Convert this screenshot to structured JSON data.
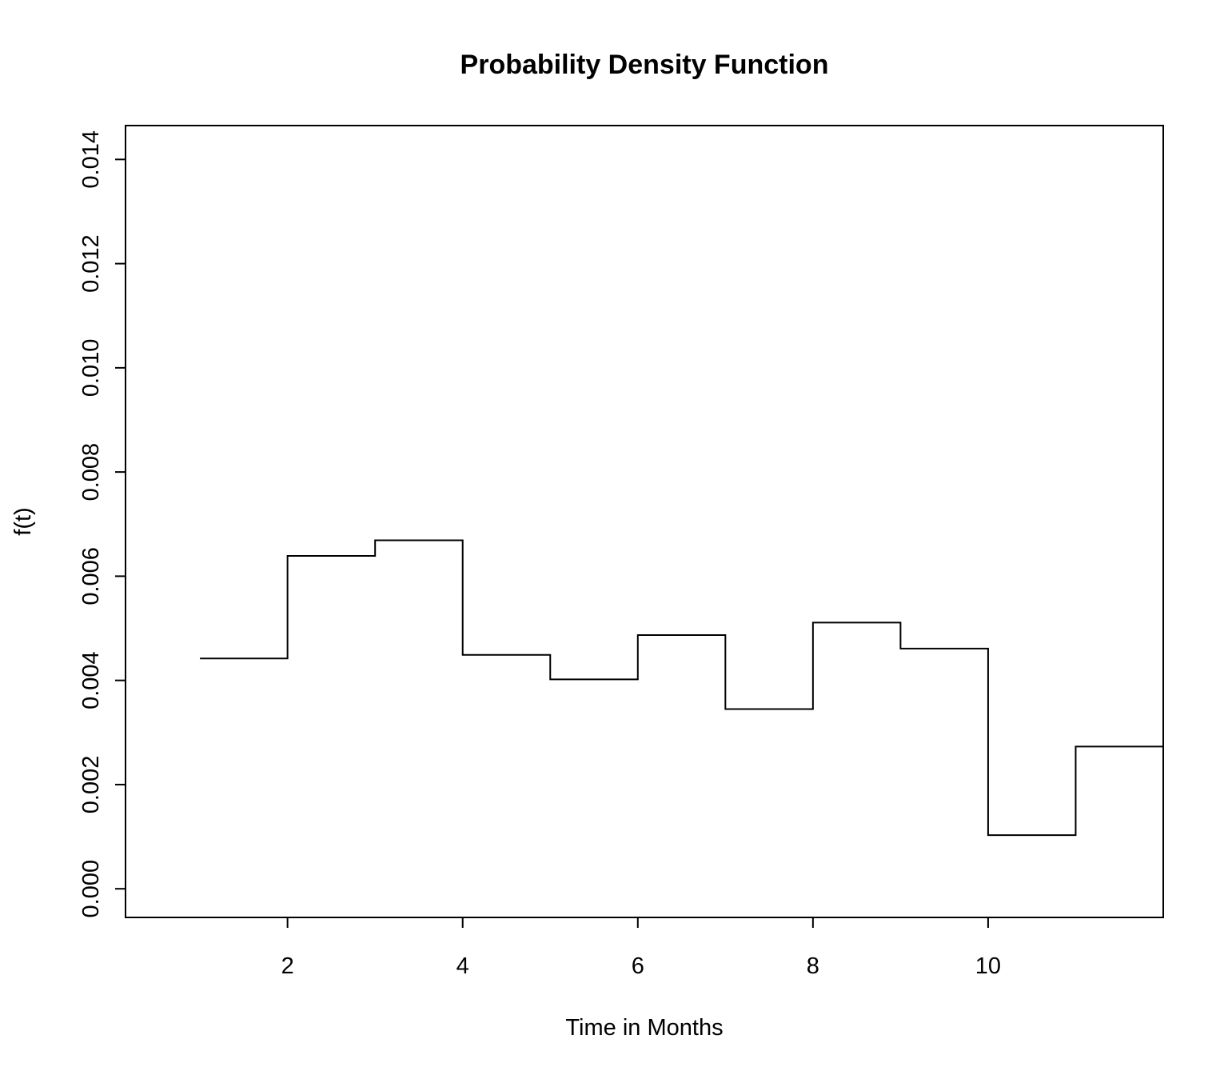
{
  "chart_data": {
    "type": "line",
    "style": "step",
    "title": "Probability Density Function",
    "xlabel": "Time in Months",
    "ylabel": "f(t)",
    "xlim": [
      0.15,
      12.0
    ],
    "ylim": [
      -0.00055,
      0.01465
    ],
    "xticks": [
      2,
      4,
      6,
      8,
      10
    ],
    "xtick_labels": [
      "2",
      "4",
      "6",
      "8",
      "10"
    ],
    "yticks": [
      0.0,
      0.002,
      0.004,
      0.006,
      0.008,
      0.01,
      0.012,
      0.014
    ],
    "ytick_labels": [
      "0.000",
      "0.002",
      "0.004",
      "0.006",
      "0.008",
      "0.010",
      "0.012",
      "0.014"
    ],
    "grid": false,
    "legend": "none",
    "series": [
      {
        "x": [
          1,
          2,
          3,
          4,
          5,
          6,
          7,
          8,
          9,
          10,
          11,
          12
        ],
        "y": [
          0.00442,
          0.00639,
          0.00669,
          0.00449,
          0.00402,
          0.00487,
          0.00345,
          0.00511,
          0.00461,
          0.00103,
          0.00273,
          0.00273
        ]
      }
    ],
    "colors": {
      "line": "#000000",
      "background": "#ffffff"
    }
  }
}
